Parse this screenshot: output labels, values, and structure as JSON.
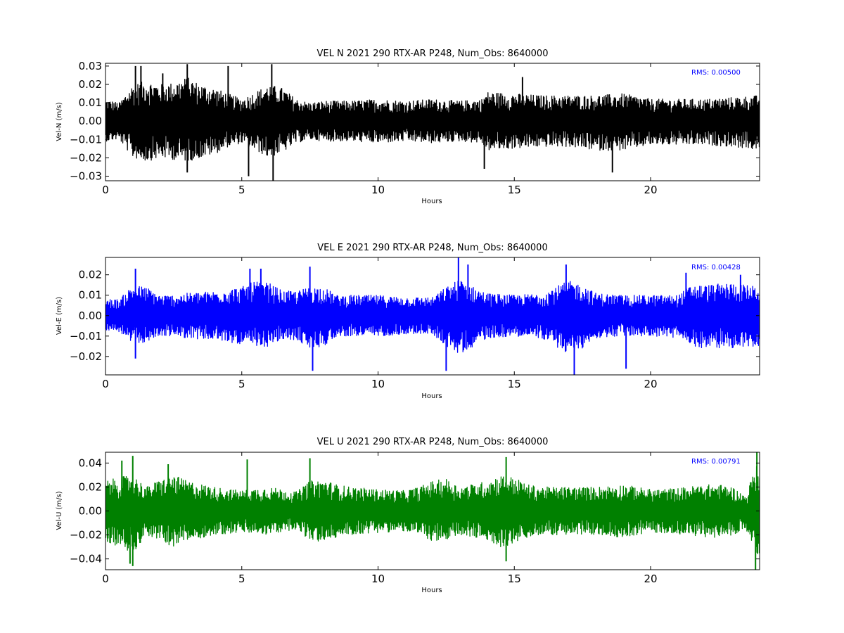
{
  "chart_data": [
    {
      "type": "line",
      "title": "VEL N 2021 290 RTX-AR  P248, Num_Obs: 8640000",
      "xlabel": "Hours",
      "ylabel": "Vel-N (m/s)",
      "xlim": [
        0,
        24
      ],
      "ylim": [
        -0.0325,
        0.0315
      ],
      "xticks": [
        0,
        5,
        10,
        15,
        20
      ],
      "xtick_labels": [
        "0",
        "5",
        "10",
        "15",
        "20"
      ],
      "yticks": [
        -0.03,
        -0.02,
        -0.01,
        0.0,
        0.01,
        0.02,
        0.03
      ],
      "ytick_labels": [
        "−0.03",
        "−0.02",
        "−0.01",
        "0.00",
        "0.01",
        "0.02",
        "0.03"
      ],
      "annotation": "RMS:  0.00500",
      "annotation_color": "#0000ff",
      "grid": false,
      "series": [
        {
          "color": "#000000",
          "envelope": {
            "hours": [
              0,
              0.5,
              1,
              1.5,
              2,
              2.5,
              3,
              3.5,
              4,
              4.5,
              5,
              5.5,
              6,
              6.5,
              7,
              7.5,
              8,
              9,
              10,
              11,
              12,
              13,
              13.8,
              14,
              15,
              16,
              17,
              18,
              19,
              20,
              21,
              22,
              23,
              24
            ],
            "upper": [
              0.012,
              0.01,
              0.02,
              0.022,
              0.02,
              0.021,
              0.024,
              0.02,
              0.018,
              0.015,
              0.012,
              0.016,
              0.02,
              0.018,
              0.012,
              0.01,
              0.011,
              0.011,
              0.012,
              0.011,
              0.012,
              0.011,
              0.012,
              0.016,
              0.015,
              0.014,
              0.014,
              0.014,
              0.015,
              0.012,
              0.012,
              0.012,
              0.013,
              0.014
            ],
            "lower": [
              -0.011,
              -0.01,
              -0.02,
              -0.022,
              -0.02,
              -0.021,
              -0.022,
              -0.02,
              -0.018,
              -0.014,
              -0.012,
              -0.016,
              -0.02,
              -0.017,
              -0.012,
              -0.01,
              -0.011,
              -0.011,
              -0.012,
              -0.011,
              -0.012,
              -0.011,
              -0.012,
              -0.016,
              -0.015,
              -0.014,
              -0.014,
              -0.016,
              -0.016,
              -0.013,
              -0.013,
              -0.013,
              -0.014,
              -0.016
            ]
          },
          "spikes": [
            {
              "x": 1.1,
              "y": 0.03
            },
            {
              "x": 1.3,
              "y": 0.03
            },
            {
              "x": 2.1,
              "y": 0.026
            },
            {
              "x": 3.0,
              "y": 0.031
            },
            {
              "x": 3.0,
              "y": -0.028
            },
            {
              "x": 4.5,
              "y": 0.03
            },
            {
              "x": 5.25,
              "y": -0.03
            },
            {
              "x": 6.1,
              "y": 0.031
            },
            {
              "x": 6.15,
              "y": -0.0325
            },
            {
              "x": 13.9,
              "y": -0.026
            },
            {
              "x": 18.6,
              "y": -0.028
            },
            {
              "x": 15.3,
              "y": 0.024
            }
          ]
        }
      ]
    },
    {
      "type": "line",
      "title": "VEL E 2021 290 RTX-AR  P248, Num_Obs: 8640000",
      "xlabel": "Hours",
      "ylabel": "Vel-E (m/s)",
      "xlim": [
        0,
        24
      ],
      "ylim": [
        -0.029,
        0.0285
      ],
      "xticks": [
        0,
        5,
        10,
        15,
        20
      ],
      "xtick_labels": [
        "0",
        "5",
        "10",
        "15",
        "20"
      ],
      "yticks": [
        -0.02,
        -0.01,
        0.0,
        0.01,
        0.02
      ],
      "ytick_labels": [
        "−0.02",
        "−0.01",
        "0.00",
        "0.01",
        "0.02"
      ],
      "annotation": "RMS:  0.00428",
      "annotation_color": "#0000ff",
      "grid": false,
      "series": [
        {
          "color": "#0000ff",
          "envelope": {
            "hours": [
              0,
              0.5,
              1,
              1.5,
              2,
              2.5,
              3,
              4,
              5,
              5.5,
              6,
              6.5,
              7,
              7.5,
              8,
              8.5,
              9,
              10,
              11,
              12,
              12.5,
              13,
              13.5,
              14,
              15,
              16,
              16.5,
              17,
              17.5,
              18,
              19,
              20,
              21,
              21.5,
              22,
              23,
              24
            ],
            "upper": [
              0.008,
              0.008,
              0.015,
              0.014,
              0.01,
              0.01,
              0.011,
              0.012,
              0.014,
              0.017,
              0.016,
              0.012,
              0.012,
              0.014,
              0.014,
              0.01,
              0.01,
              0.01,
              0.009,
              0.009,
              0.014,
              0.018,
              0.014,
              0.011,
              0.01,
              0.011,
              0.014,
              0.017,
              0.015,
              0.011,
              0.01,
              0.01,
              0.01,
              0.015,
              0.015,
              0.016,
              0.014
            ],
            "lower": [
              -0.007,
              -0.008,
              -0.014,
              -0.013,
              -0.01,
              -0.01,
              -0.011,
              -0.012,
              -0.014,
              -0.016,
              -0.015,
              -0.012,
              -0.012,
              -0.016,
              -0.015,
              -0.01,
              -0.01,
              -0.01,
              -0.009,
              -0.009,
              -0.015,
              -0.019,
              -0.015,
              -0.011,
              -0.01,
              -0.011,
              -0.015,
              -0.019,
              -0.016,
              -0.011,
              -0.01,
              -0.01,
              -0.011,
              -0.015,
              -0.016,
              -0.016,
              -0.015
            ]
          },
          "spikes": [
            {
              "x": 1.1,
              "y": 0.023
            },
            {
              "x": 1.1,
              "y": -0.021
            },
            {
              "x": 5.3,
              "y": 0.023
            },
            {
              "x": 5.7,
              "y": 0.023
            },
            {
              "x": 7.5,
              "y": 0.024
            },
            {
              "x": 7.6,
              "y": -0.027
            },
            {
              "x": 12.5,
              "y": -0.027
            },
            {
              "x": 12.95,
              "y": 0.0285
            },
            {
              "x": 13.3,
              "y": 0.025
            },
            {
              "x": 16.9,
              "y": 0.025
            },
            {
              "x": 17.2,
              "y": -0.029
            },
            {
              "x": 19.1,
              "y": -0.026
            },
            {
              "x": 21.3,
              "y": 0.021
            },
            {
              "x": 23.3,
              "y": 0.02
            }
          ]
        }
      ]
    },
    {
      "type": "line",
      "title": "VEL U 2021 290 RTX-AR  P248, Num_Obs: 8640000",
      "xlabel": "Hours",
      "ylabel": "Vel-U (m/s)",
      "xlim": [
        0,
        24
      ],
      "ylim": [
        -0.049,
        0.049
      ],
      "xticks": [
        0,
        5,
        10,
        15,
        20
      ],
      "xtick_labels": [
        "0",
        "5",
        "10",
        "15",
        "20"
      ],
      "yticks": [
        -0.04,
        -0.02,
        0.0,
        0.02,
        0.04
      ],
      "ytick_labels": [
        "−0.04",
        "−0.02",
        "0.00",
        "0.02",
        "0.04"
      ],
      "annotation": "RMS:  0.00791",
      "annotation_color": "#0000ff",
      "grid": false,
      "series": [
        {
          "color": "#008000",
          "envelope": {
            "hours": [
              0,
              0.5,
              1,
              1.5,
              2,
              2.5,
              3,
              4,
              5,
              6,
              7,
              7.5,
              8,
              8.5,
              9,
              10,
              11,
              11.5,
              12,
              12.5,
              13,
              14,
              14.5,
              15,
              15.5,
              16,
              17,
              18,
              19,
              20,
              21,
              22,
              22.5,
              23,
              23.5,
              23.8,
              24
            ],
            "upper": [
              0.025,
              0.028,
              0.03,
              0.02,
              0.026,
              0.03,
              0.025,
              0.02,
              0.017,
              0.02,
              0.016,
              0.025,
              0.026,
              0.022,
              0.02,
              0.018,
              0.017,
              0.02,
              0.025,
              0.027,
              0.02,
              0.025,
              0.03,
              0.028,
              0.022,
              0.02,
              0.02,
              0.02,
              0.022,
              0.018,
              0.019,
              0.022,
              0.022,
              0.02,
              0.012,
              0.035,
              0.04
            ],
            "lower": [
              -0.025,
              -0.03,
              -0.035,
              -0.02,
              -0.025,
              -0.03,
              -0.025,
              -0.02,
              -0.018,
              -0.02,
              -0.015,
              -0.025,
              -0.026,
              -0.022,
              -0.02,
              -0.018,
              -0.017,
              -0.02,
              -0.025,
              -0.027,
              -0.02,
              -0.025,
              -0.03,
              -0.028,
              -0.022,
              -0.02,
              -0.02,
              -0.02,
              -0.022,
              -0.018,
              -0.019,
              -0.022,
              -0.022,
              -0.02,
              -0.015,
              -0.035,
              -0.045
            ]
          },
          "spikes": [
            {
              "x": 0.6,
              "y": 0.042
            },
            {
              "x": 1.0,
              "y": 0.046
            },
            {
              "x": 1.0,
              "y": -0.046
            },
            {
              "x": 0.9,
              "y": -0.044
            },
            {
              "x": 2.3,
              "y": 0.039
            },
            {
              "x": 5.2,
              "y": 0.043
            },
            {
              "x": 7.5,
              "y": 0.044
            },
            {
              "x": 14.7,
              "y": 0.045
            },
            {
              "x": 14.7,
              "y": -0.042
            },
            {
              "x": 23.9,
              "y": 0.049
            },
            {
              "x": 23.85,
              "y": -0.049
            }
          ]
        }
      ]
    }
  ]
}
